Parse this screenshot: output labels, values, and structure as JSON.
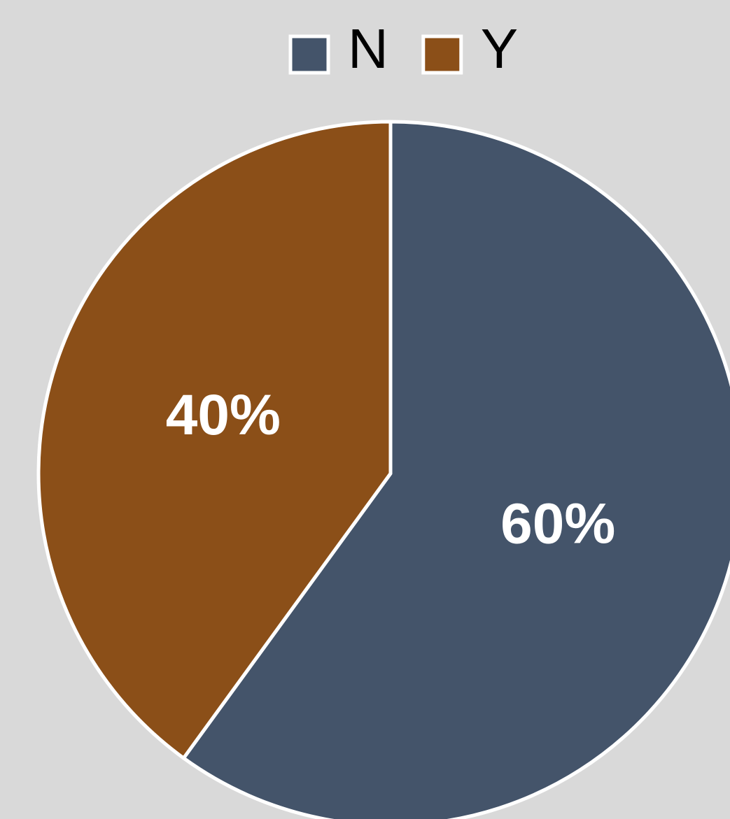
{
  "chart_data": {
    "type": "pie",
    "categories": [
      "N",
      "Y"
    ],
    "values": [
      60,
      40
    ],
    "value_labels": [
      "60%",
      "40%"
    ],
    "colors": [
      "#44546a",
      "#8b4f18"
    ],
    "legend": "top"
  }
}
